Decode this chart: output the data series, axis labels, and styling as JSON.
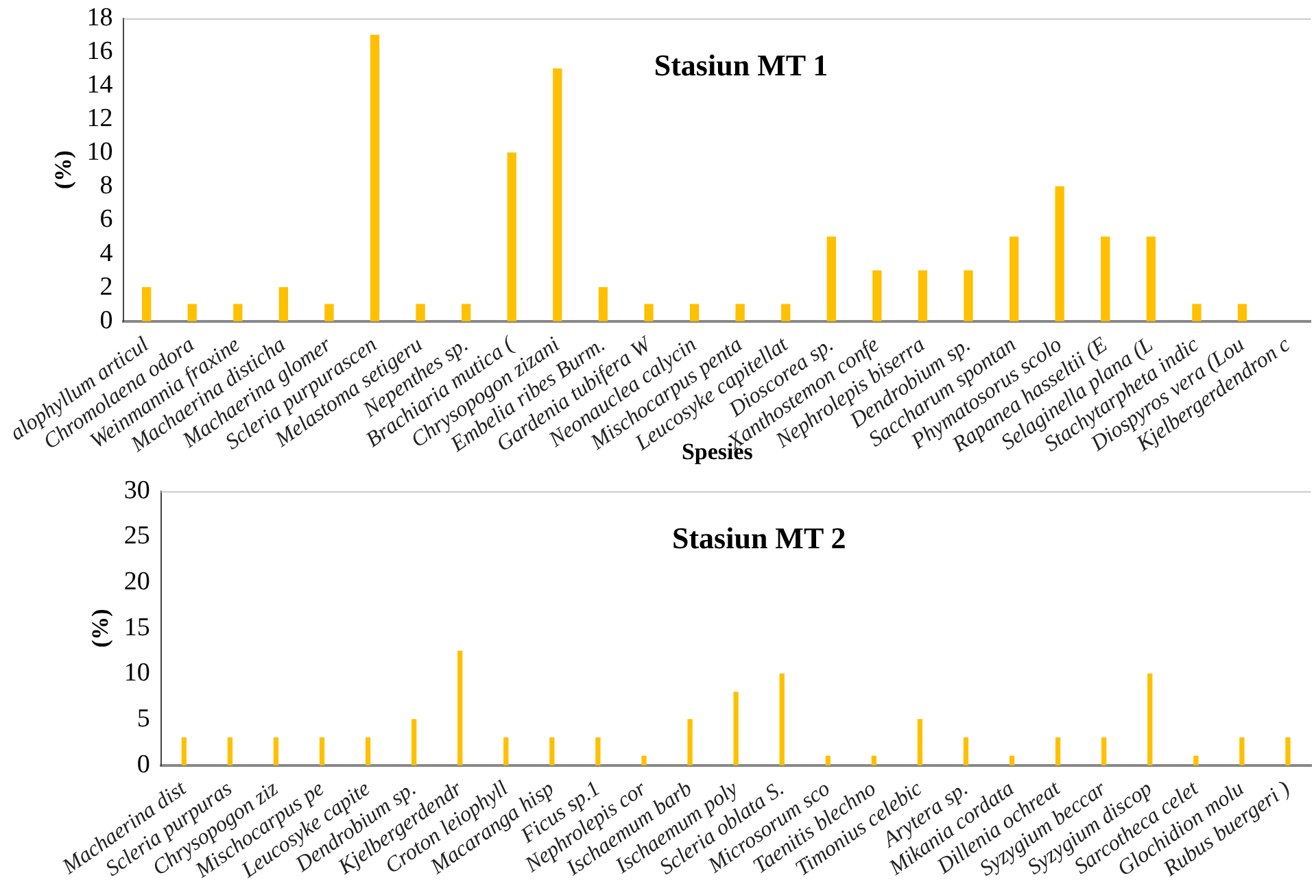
{
  "chart_data": [
    {
      "type": "bar",
      "title": "Stasiun MT 1",
      "xlabel": "Spesies",
      "ylabel": "(%)",
      "color": "#ffc000",
      "grid": false,
      "categories": [
        "alophyllum articul",
        "Chromolaena odora",
        "Weinmannia fraxine",
        "Machaerina disticha",
        "Machaerina glomer",
        "Scleria purpurascen",
        "Melastoma setigeru",
        "Nepenthes sp.",
        "Brachiaria mutica (",
        "Chrysopogon zizani",
        "Embelia ribes Burm.",
        "Gardenia tubifera W",
        "Neonauclea calycin",
        "Mischocarpus penta",
        "Leucosyke capitellat",
        "Dioscorea sp.",
        "Xanthostemon confe",
        "Nephrolepis biserra",
        "Dendrobium sp.",
        "Saccharum spontan",
        "Phymatosorus scolo",
        "Rapanea hasseltii (E",
        "Selaginella plana (L",
        "Stachytarpheta indic",
        "Diospyros vera (Lou",
        "Kjelbergerdendron c"
      ],
      "values": [
        2,
        1,
        1,
        2,
        1,
        17,
        1,
        1,
        10,
        15,
        2,
        1,
        1,
        1,
        1,
        5,
        3,
        3,
        3,
        5,
        8,
        5,
        5,
        1,
        1,
        null
      ],
      "ylim": [
        0,
        18
      ],
      "yticks": [
        0,
        2,
        4,
        6,
        8,
        10,
        12,
        14,
        16,
        18
      ]
    },
    {
      "type": "bar",
      "title": "Stasiun MT 2",
      "ylabel": "(%)",
      "color": "#ffc000",
      "grid": false,
      "categories": [
        "Machaerina dist",
        "Scleria purpuras",
        "Chrysopogon ziz",
        "Mischocarpus pe",
        "Leucosyke capite",
        "Dendrobium sp.",
        "Kjelbergerdendr",
        "Croton leiophyll",
        "Macaranga hisp",
        "Ficus sp.1",
        "Nephrolepis cor",
        "Ischaemum barb",
        "Ischaemum poly",
        "Scleria oblata S.",
        "Microsorum sco",
        "Taenitis blechno",
        "Timonius celebic",
        "Arytera sp.",
        "Mikania cordata",
        "Dillenia ochreat",
        "Syzygium beccar",
        "Syzygium discop",
        "Sarcotheca celet",
        "Glochidion molu",
        "Rubus buergeri )"
      ],
      "values": [
        3,
        3,
        3,
        3,
        3,
        5,
        12.5,
        3,
        3,
        3,
        1,
        5,
        8,
        10,
        1,
        1,
        5,
        3,
        1,
        3,
        3,
        10,
        1,
        3,
        3
      ],
      "ylim": [
        0,
        30
      ],
      "yticks": [
        0,
        5,
        10,
        15,
        20,
        25,
        30
      ]
    }
  ]
}
